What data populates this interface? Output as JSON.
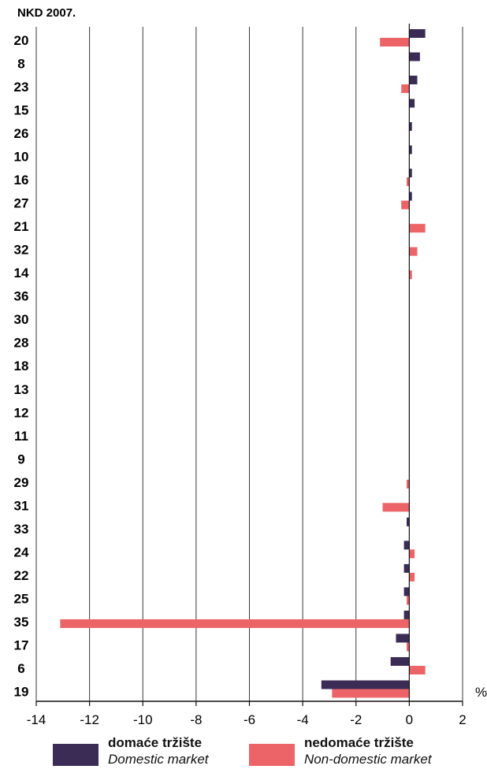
{
  "chart_data": {
    "type": "bar",
    "orientation": "horizontal",
    "category_header": "NKD 2007.",
    "unit_label": "%",
    "categories": [
      "20",
      "8",
      "23",
      "15",
      "26",
      "10",
      "16",
      "27",
      "21",
      "32",
      "14",
      "36",
      "30",
      "28",
      "18",
      "13",
      "12",
      "11",
      "9",
      "29",
      "31",
      "33",
      "24",
      "22",
      "25",
      "35",
      "17",
      "6",
      "19"
    ],
    "series": [
      {
        "name": "domaće tržište",
        "name_en": "Domestic market",
        "color": "#3b2c55",
        "values": [
          0.6,
          0.4,
          0.3,
          0.2,
          0.1,
          0.1,
          0.1,
          0.1,
          0,
          0,
          0,
          0,
          0,
          0,
          0,
          0,
          0,
          0,
          0,
          0,
          0,
          -0.1,
          -0.2,
          -0.2,
          -0.2,
          -0.2,
          -0.5,
          -0.7,
          -3.3
        ]
      },
      {
        "name": "nedomaće tržište",
        "name_en": "Non-domestic market",
        "color": "#ec6467",
        "values": [
          -1.1,
          0,
          -0.3,
          0,
          0,
          0,
          -0.1,
          -0.3,
          0.6,
          0.3,
          0.1,
          0,
          0,
          0,
          0,
          0,
          0,
          0,
          0,
          -0.1,
          -1,
          0,
          0.2,
          0.2,
          -0.1,
          -13.1,
          -0.1,
          0.6,
          -2.9
        ]
      }
    ],
    "xlim": [
      -14,
      2
    ],
    "xticks": [
      -14,
      -12,
      -10,
      -8,
      -6,
      -4,
      -2,
      0,
      2
    ],
    "grid": true,
    "legend_position": "bottom"
  }
}
